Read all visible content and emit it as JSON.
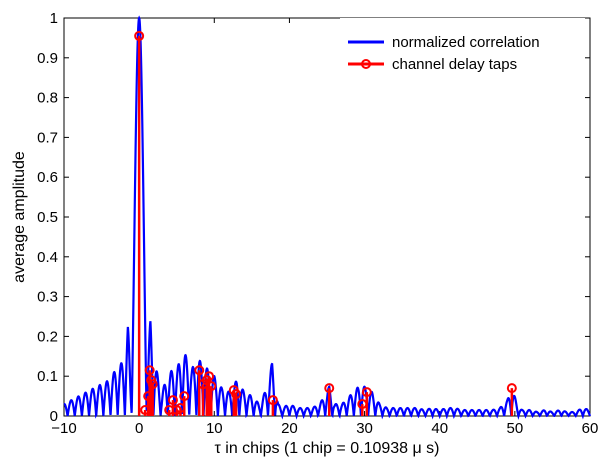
{
  "chart_data": {
    "type": "line",
    "title": "",
    "xlabel": "τ in chips (1 chip = 0.10938 μ s)",
    "ylabel": "average amplitude",
    "xlim": [
      -10,
      60
    ],
    "ylim": [
      0,
      1
    ],
    "grid": false,
    "legend_position": "top-right",
    "x_ticks": [
      -10,
      0,
      10,
      20,
      30,
      40,
      50,
      60
    ],
    "x_tick_labels": [
      "−10",
      "0",
      "10",
      "20",
      "30",
      "40",
      "50",
      "60"
    ],
    "y_ticks": [
      0,
      0.1,
      0.2,
      0.3,
      0.4,
      0.5,
      0.6,
      0.7,
      0.8,
      0.9,
      1
    ],
    "y_tick_labels": [
      "0",
      "0.1",
      "0.2",
      "0.3",
      "0.4",
      "0.5",
      "0.6",
      "0.7",
      "0.8",
      "0.9",
      "1"
    ],
    "series": [
      {
        "name": "normalized correlation",
        "style": "line",
        "color": "#0000ff",
        "envelope": {
          "x": [
            -10,
            -8,
            -6,
            -4,
            -3,
            -2,
            -1.5,
            -1,
            -0.5,
            0,
            0.5,
            1,
            1.5,
            2,
            3,
            4,
            5,
            6,
            7,
            8,
            9,
            10,
            11,
            12,
            13,
            14,
            15,
            16,
            17,
            17.7,
            18.5,
            19,
            20,
            21,
            22,
            23,
            24,
            25,
            25.3,
            26,
            27,
            28,
            29,
            29.6,
            30.2,
            31,
            32,
            33,
            34,
            35,
            36,
            37,
            38,
            39,
            40,
            41,
            42,
            43,
            44,
            45,
            46,
            47,
            48,
            49,
            49.6,
            50.5,
            51,
            52,
            53,
            54,
            55,
            56,
            57,
            58,
            59,
            60
          ],
          "y": [
            0.03,
            0.05,
            0.07,
            0.09,
            0.12,
            0.14,
            0.23,
            0.05,
            0.3,
            1.0,
            0.5,
            0.08,
            0.245,
            0.14,
            0.06,
            0.11,
            0.12,
            0.16,
            0.12,
            0.14,
            0.12,
            0.1,
            0.07,
            0.06,
            0.09,
            0.06,
            0.05,
            0.03,
            0.07,
            0.135,
            0.03,
            0.02,
            0.03,
            0.02,
            0.02,
            0.02,
            0.03,
            0.06,
            0.075,
            0.03,
            0.03,
            0.05,
            0.07,
            0.08,
            0.07,
            0.06,
            0.03,
            0.02,
            0.02,
            0.02,
            0.02,
            0.02,
            0.015,
            0.02,
            0.015,
            0.02,
            0.02,
            0.015,
            0.015,
            0.015,
            0.015,
            0.015,
            0.02,
            0.04,
            0.07,
            0.02,
            0.015,
            0.015,
            0.01,
            0.015,
            0.01,
            0.015,
            0.01,
            0.01,
            0.02,
            0.015
          ]
        }
      },
      {
        "name": "channel delay taps",
        "style": "stem",
        "color": "#ff0000",
        "x": [
          0,
          0.8,
          1.2,
          1.4,
          1.6,
          1.8,
          4.0,
          4.5,
          5.0,
          5.5,
          6.0,
          8.0,
          8.5,
          9.0,
          9.3,
          9.6,
          12.6,
          12.9,
          17.8,
          25.3,
          29.7,
          30.3,
          49.6
        ],
        "y": [
          0.955,
          0.015,
          0.05,
          0.115,
          0.09,
          0.08,
          0.015,
          0.04,
          0.015,
          0.02,
          0.05,
          0.115,
          0.08,
          0.09,
          0.1,
          0.075,
          0.065,
          0.055,
          0.04,
          0.07,
          0.03,
          0.06,
          0.07
        ]
      }
    ]
  }
}
